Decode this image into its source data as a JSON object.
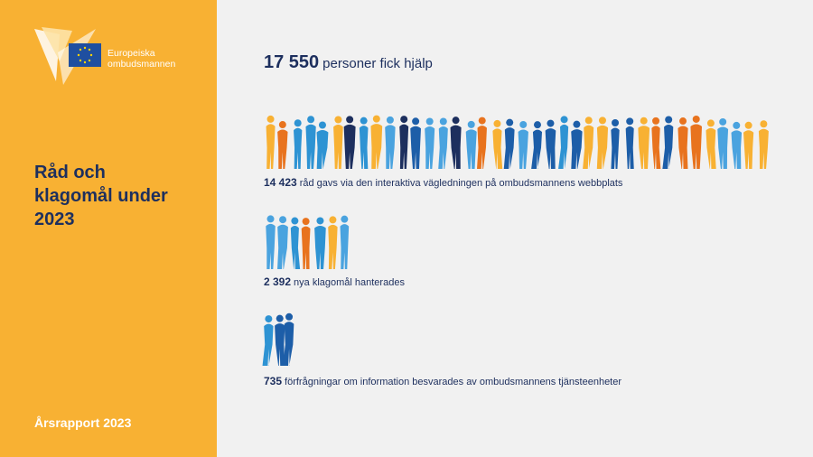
{
  "logo": {
    "line1": "Europeiska",
    "line2": "ombudsmannen"
  },
  "sidebar": {
    "title_lines": [
      "Råd och",
      "klagomål under",
      "2023"
    ],
    "footer": "Årsrapport 2023"
  },
  "headline": {
    "number": "17 550",
    "text": "personer fick hjälp"
  },
  "items": [
    {
      "number": "14 423",
      "text": "råd gavs via den interaktiva vägledningen på ombudsmannens webbplats"
    },
    {
      "number": "2 392",
      "text": "nya klagomål hanterades"
    },
    {
      "number": "735",
      "text": "förfrågningar om information besvarades av ombudsmannens tjänsteenheter"
    }
  ]
}
